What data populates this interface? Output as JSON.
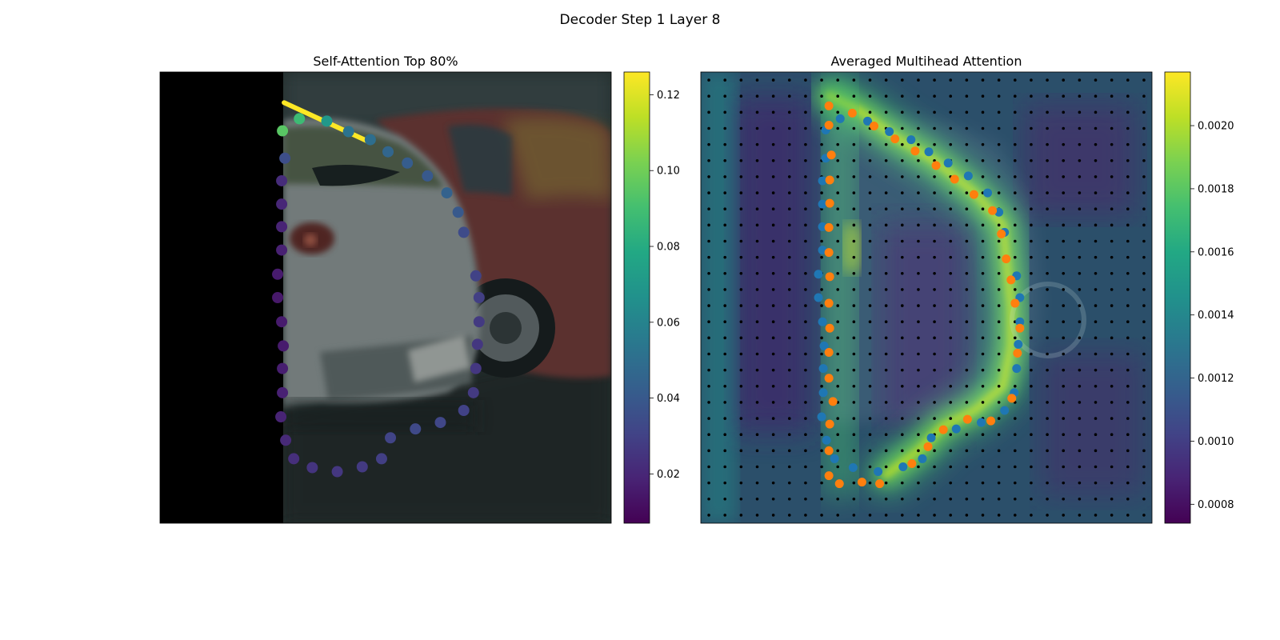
{
  "figure": {
    "title": "Decoder Step 1 Layer 8"
  },
  "colors": {
    "viridis": [
      "#440154",
      "#482475",
      "#414487",
      "#355f8d",
      "#2a788e",
      "#21918c",
      "#22a884",
      "#44bf70",
      "#7ad151",
      "#bddf26",
      "#fde725"
    ],
    "blue_points": "#1f77b4",
    "orange_points": "#ff7f0e",
    "grid_dots": "#000000"
  },
  "chart_data": [
    {
      "type": "scatter",
      "title": "Self-Attention Top 80%",
      "background": "photo of parked cars (grey hatchback and red car), left portion black",
      "colorbar": {
        "range": [
          0.007,
          0.126
        ],
        "ticks": [
          0.02,
          0.04,
          0.06,
          0.08,
          0.1,
          0.12
        ],
        "tick_labels": [
          "0.02",
          "0.04",
          "0.06",
          "0.08",
          "0.10",
          "0.12"
        ]
      },
      "points_axis": {
        "x_range": [
          0,
          560
        ],
        "y_range": [
          0,
          560
        ]
      },
      "points": [
        {
          "x": 152,
          "y": 73,
          "v": 0.095
        },
        {
          "x": 173,
          "y": 58,
          "v": 0.088
        },
        {
          "x": 207,
          "y": 61,
          "v": 0.07
        },
        {
          "x": 234,
          "y": 74,
          "v": 0.052
        },
        {
          "x": 261,
          "y": 84,
          "v": 0.05
        },
        {
          "x": 283,
          "y": 99,
          "v": 0.046
        },
        {
          "x": 307,
          "y": 113,
          "v": 0.042
        },
        {
          "x": 332,
          "y": 129,
          "v": 0.04
        },
        {
          "x": 356,
          "y": 150,
          "v": 0.044
        },
        {
          "x": 370,
          "y": 174,
          "v": 0.04
        },
        {
          "x": 377,
          "y": 199,
          "v": 0.034
        },
        {
          "x": 392,
          "y": 253,
          "v": 0.03
        },
        {
          "x": 396,
          "y": 280,
          "v": 0.029
        },
        {
          "x": 396,
          "y": 310,
          "v": 0.027
        },
        {
          "x": 394,
          "y": 338,
          "v": 0.026
        },
        {
          "x": 392,
          "y": 368,
          "v": 0.026
        },
        {
          "x": 389,
          "y": 398,
          "v": 0.027
        },
        {
          "x": 377,
          "y": 420,
          "v": 0.03
        },
        {
          "x": 348,
          "y": 435,
          "v": 0.032
        },
        {
          "x": 317,
          "y": 443,
          "v": 0.033
        },
        {
          "x": 286,
          "y": 454,
          "v": 0.031
        },
        {
          "x": 275,
          "y": 480,
          "v": 0.029
        },
        {
          "x": 251,
          "y": 490,
          "v": 0.027
        },
        {
          "x": 220,
          "y": 496,
          "v": 0.026
        },
        {
          "x": 189,
          "y": 491,
          "v": 0.025
        },
        {
          "x": 166,
          "y": 480,
          "v": 0.023
        },
        {
          "x": 156,
          "y": 457,
          "v": 0.021
        },
        {
          "x": 150,
          "y": 428,
          "v": 0.019
        },
        {
          "x": 152,
          "y": 398,
          "v": 0.018
        },
        {
          "x": 152,
          "y": 368,
          "v": 0.017
        },
        {
          "x": 153,
          "y": 340,
          "v": 0.016
        },
        {
          "x": 151,
          "y": 310,
          "v": 0.016
        },
        {
          "x": 146,
          "y": 280,
          "v": 0.015
        },
        {
          "x": 146,
          "y": 251,
          "v": 0.016
        },
        {
          "x": 151,
          "y": 221,
          "v": 0.018
        },
        {
          "x": 151,
          "y": 192,
          "v": 0.019
        },
        {
          "x": 151,
          "y": 164,
          "v": 0.02
        },
        {
          "x": 151,
          "y": 135,
          "v": 0.022
        },
        {
          "x": 155,
          "y": 107,
          "v": 0.035
        }
      ],
      "highlight_segment": {
        "from": [
          154,
          38
        ],
        "to": [
          258,
          86
        ],
        "v": 0.126
      }
    },
    {
      "type": "heatmap",
      "title": "Averaged Multihead Attention",
      "colorbar": {
        "range": [
          0.00074,
          0.00217
        ],
        "ticks": [
          0.0008,
          0.001,
          0.0012,
          0.0014,
          0.0016,
          0.0018,
          0.002
        ],
        "tick_labels": [
          "0.0008",
          "0.0010",
          "0.0012",
          "0.0014",
          "0.0016",
          "0.0018",
          "0.0020"
        ]
      },
      "grid": {
        "rows": 28,
        "cols": 28
      },
      "heat_path": [
        [
          160,
          30
        ],
        [
          200,
          50
        ],
        [
          240,
          80
        ],
        [
          290,
          110
        ],
        [
          340,
          150
        ],
        [
          375,
          190
        ],
        [
          380,
          240
        ],
        [
          385,
          290
        ],
        [
          385,
          340
        ],
        [
          375,
          390
        ],
        [
          340,
          420
        ],
        [
          300,
          440
        ],
        [
          270,
          470
        ],
        [
          230,
          500
        ]
      ],
      "points_axis": {
        "x_range": [
          0,
          560
        ],
        "y_range": [
          0,
          560
        ]
      },
      "blue_points": [
        [
          155,
          72
        ],
        [
          173,
          58
        ],
        [
          207,
          61
        ],
        [
          234,
          74
        ],
        [
          261,
          84
        ],
        [
          283,
          99
        ],
        [
          307,
          113
        ],
        [
          332,
          129
        ],
        [
          356,
          150
        ],
        [
          370,
          174
        ],
        [
          377,
          199
        ],
        [
          392,
          253
        ],
        [
          396,
          280
        ],
        [
          396,
          310
        ],
        [
          394,
          338
        ],
        [
          392,
          368
        ],
        [
          389,
          398
        ],
        [
          377,
          420
        ],
        [
          348,
          435
        ],
        [
          317,
          443
        ],
        [
          286,
          454
        ],
        [
          275,
          480
        ],
        [
          251,
          490
        ],
        [
          220,
          496
        ],
        [
          189,
          491
        ],
        [
          166,
          480
        ],
        [
          156,
          457
        ],
        [
          150,
          428
        ],
        [
          152,
          398
        ],
        [
          152,
          368
        ],
        [
          153,
          340
        ],
        [
          151,
          310
        ],
        [
          146,
          280
        ],
        [
          146,
          251
        ],
        [
          151,
          221
        ],
        [
          151,
          192
        ],
        [
          151,
          164
        ],
        [
          151,
          135
        ],
        [
          155,
          107
        ]
      ],
      "orange_points": [
        [
          159,
          42
        ],
        [
          159,
          66
        ],
        [
          188,
          51
        ],
        [
          215,
          67
        ],
        [
          241,
          83
        ],
        [
          266,
          98
        ],
        [
          292,
          116
        ],
        [
          315,
          133
        ],
        [
          339,
          152
        ],
        [
          362,
          172
        ],
        [
          373,
          201
        ],
        [
          379,
          232
        ],
        [
          385,
          258
        ],
        [
          390,
          287
        ],
        [
          396,
          318
        ],
        [
          393,
          349
        ],
        [
          386,
          405
        ],
        [
          360,
          433
        ],
        [
          331,
          431
        ],
        [
          301,
          444
        ],
        [
          282,
          465
        ],
        [
          262,
          486
        ],
        [
          222,
          511
        ],
        [
          200,
          509
        ],
        [
          172,
          511
        ],
        [
          159,
          501
        ],
        [
          159,
          470
        ],
        [
          160,
          437
        ],
        [
          164,
          409
        ],
        [
          159,
          380
        ],
        [
          159,
          348
        ],
        [
          160,
          318
        ],
        [
          159,
          287
        ],
        [
          160,
          254
        ],
        [
          159,
          224
        ],
        [
          159,
          193
        ],
        [
          160,
          163
        ],
        [
          160,
          134
        ],
        [
          162,
          103
        ]
      ]
    }
  ]
}
